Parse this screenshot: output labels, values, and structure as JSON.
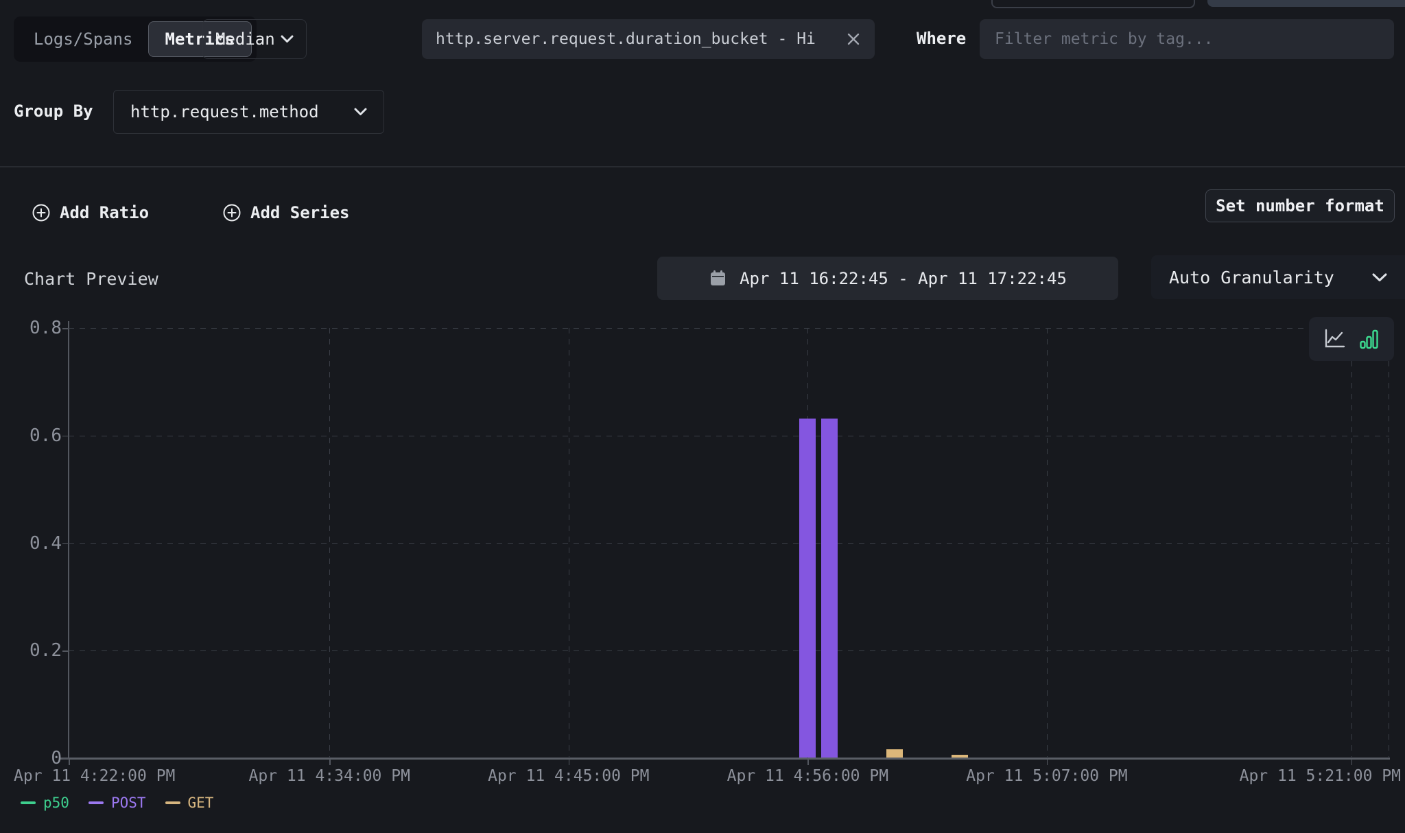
{
  "colors": {
    "background": "#17191e",
    "panel": "#262931",
    "accent_green": "#3ddc91",
    "series_post_purple": "#8456e0",
    "series_get_tan": "#dcb77a",
    "series_p50_green": "#3ecf8e"
  },
  "query_builder": {
    "source_tabs": [
      {
        "label": "Logs/Spans",
        "active": false
      },
      {
        "label": "Metrics",
        "active": true
      }
    ],
    "aggregation": {
      "value": "Median"
    },
    "metric": {
      "value": "http.server.request.duration_bucket - Hi"
    },
    "where": {
      "label": "Where",
      "placeholder": "Filter metric by tag..."
    },
    "group_by": {
      "label": "Group By",
      "value": "http.request.method"
    },
    "actions": {
      "add_ratio": "Add Ratio",
      "add_series": "Add Series",
      "set_number_format": "Set number format"
    }
  },
  "preview": {
    "title": "Chart Preview",
    "time_range": "Apr 11 16:22:45 - Apr 11 17:22:45",
    "granularity": "Auto Granularity",
    "chart_type_toggle": {
      "options": [
        "line",
        "bar"
      ],
      "active": "bar"
    }
  },
  "chart_data": {
    "type": "bar",
    "title": "",
    "grid": true,
    "legend_position": "bottom-left",
    "x_axis": {
      "start": "Apr 11 4:22:00 PM",
      "end": "Apr 11 5:22:45 PM",
      "ticks": [
        "Apr 11 4:22:00 PM",
        "Apr 11 4:34:00 PM",
        "Apr 11 4:45:00 PM",
        "Apr 11 4:56:00 PM",
        "Apr 11 5:07:00 PM",
        "Apr 11 5:21:00 PM"
      ]
    },
    "y_axis": {
      "min": 0,
      "max": 0.8,
      "ticks": [
        0.8,
        0.6,
        0.4,
        0.2,
        0
      ]
    },
    "series": [
      {
        "name": "p50",
        "color": "#3ecf8e",
        "legend_color": "#3ecf8e",
        "points": []
      },
      {
        "name": "POST",
        "color": "#8456e0",
        "legend_color": "#9b78f0",
        "points": [
          {
            "t": "4:56:00 PM",
            "v": 0.63
          },
          {
            "t": "4:57:00 PM",
            "v": 0.63
          }
        ]
      },
      {
        "name": "GET",
        "color": "#dcb77a",
        "legend_color": "#d6b57f",
        "points": [
          {
            "t": "5:00:00 PM",
            "v": 0.015
          },
          {
            "t": "5:03:00 PM",
            "v": 0.005
          }
        ]
      }
    ]
  }
}
